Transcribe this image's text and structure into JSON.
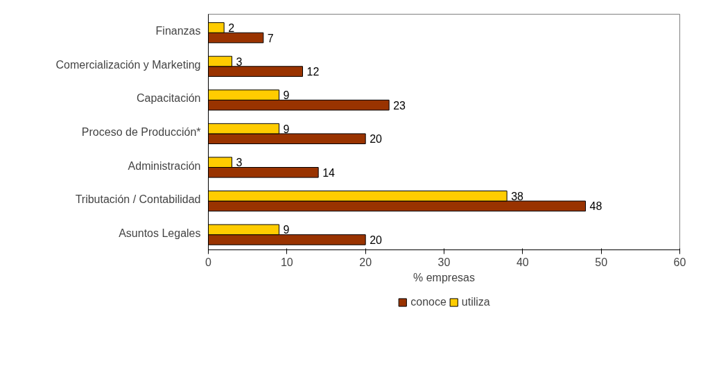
{
  "chart_data": {
    "type": "bar",
    "orientation": "horizontal",
    "xlabel": "% empresas",
    "categories": [
      "Finanzas",
      "Comercialización y Marketing",
      "Capacitación",
      "Proceso de Producción*",
      "Administración",
      "Tributación / Contabilidad",
      "Asuntos Legales"
    ],
    "series": [
      {
        "name": "conoce",
        "color": "#993300",
        "values": [
          7,
          12,
          23,
          20,
          14,
          48,
          20
        ]
      },
      {
        "name": "utiliza",
        "color": "#ffcc00",
        "values": [
          2,
          3,
          9,
          9,
          3,
          38,
          9
        ]
      }
    ],
    "xlim": [
      0,
      60
    ],
    "xticks": [
      0,
      10,
      20,
      30,
      40,
      50,
      60
    ],
    "grid": false,
    "legend": "bottom",
    "data_labels": true
  }
}
